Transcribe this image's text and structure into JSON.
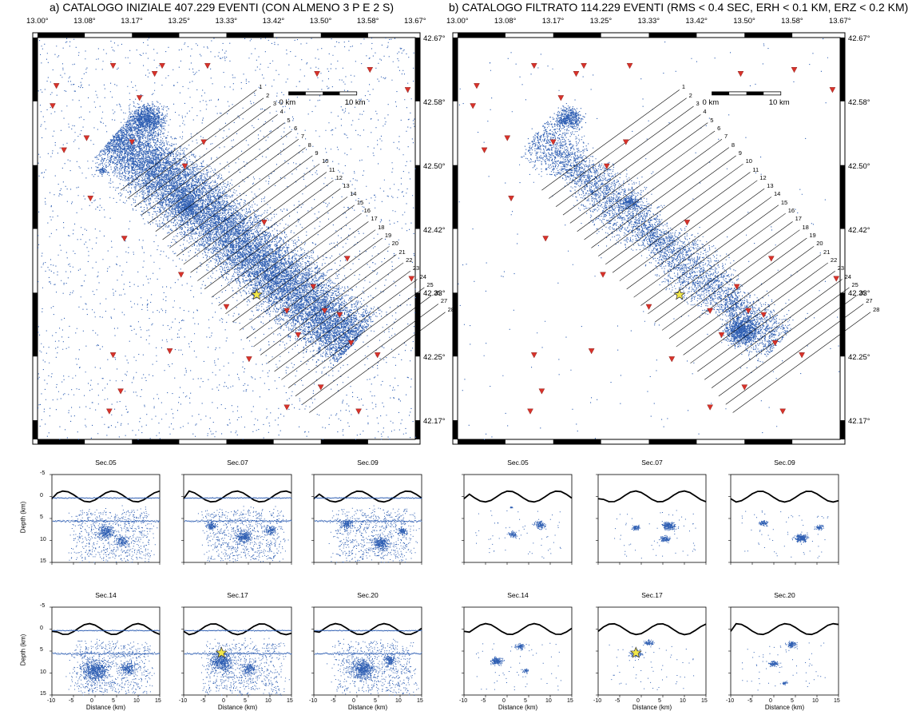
{
  "panel_a": {
    "title": "a) CATALOGO INIZIALE 407.229  EVENTI (CON ALMENO 3 P E 2 S)",
    "scale_start": "0 km",
    "scale_end": "10 km"
  },
  "panel_b": {
    "title": "b) CATALOGO FILTRATO 114.229 EVENTI (RMS < 0.4 SEC, ERH < 0.1 KM, ERZ < 0.2 KM)",
    "scale_start": "0 km",
    "scale_end": "10 km"
  },
  "longitude_labels": [
    "13.00°",
    "13.08°",
    "13.17°",
    "13.25°",
    "13.33°",
    "13.42°",
    "13.50°",
    "13.58°",
    "13.67°"
  ],
  "latitude_labels": [
    "42.67°",
    "42.58°",
    "42.50°",
    "42.42°",
    "42.33°",
    "42.25°",
    "42.17°"
  ],
  "section_numbers": [
    "1",
    "2",
    "3",
    "4",
    "5",
    "6",
    "7",
    "8",
    "9",
    "10",
    "11",
    "12",
    "13",
    "14",
    "15",
    "16",
    "17",
    "18",
    "19",
    "20",
    "21",
    "22",
    "23",
    "24",
    "25",
    "26",
    "27",
    "28"
  ],
  "sections_a": [
    {
      "title": "Sec.05"
    },
    {
      "title": "Sec.07"
    },
    {
      "title": "Sec.09"
    },
    {
      "title": "Sec.14"
    },
    {
      "title": "Sec.17"
    },
    {
      "title": "Sec.20"
    }
  ],
  "sections_b": [
    {
      "title": "Sec.05"
    },
    {
      "title": "Sec.07"
    },
    {
      "title": "Sec.09"
    },
    {
      "title": "Sec.14"
    },
    {
      "title": "Sec.17"
    },
    {
      "title": "Sec.20"
    }
  ],
  "depth_axis_label": "Depth (km)",
  "distance_axis_label": "Distance (km)",
  "depth_ticks": [
    "-5",
    "0",
    "5",
    "10",
    "15"
  ],
  "distance_ticks": [
    "-10",
    "-5",
    "0",
    "5",
    "10",
    "15"
  ],
  "colors": {
    "seismicity": "#2f5fb3",
    "station": "#d9322a",
    "mainshock": "#f2e84a",
    "frame": "#000000"
  },
  "icons": {
    "station": "red-inverted-triangle-icon",
    "mainshock": "yellow-star-icon"
  }
}
